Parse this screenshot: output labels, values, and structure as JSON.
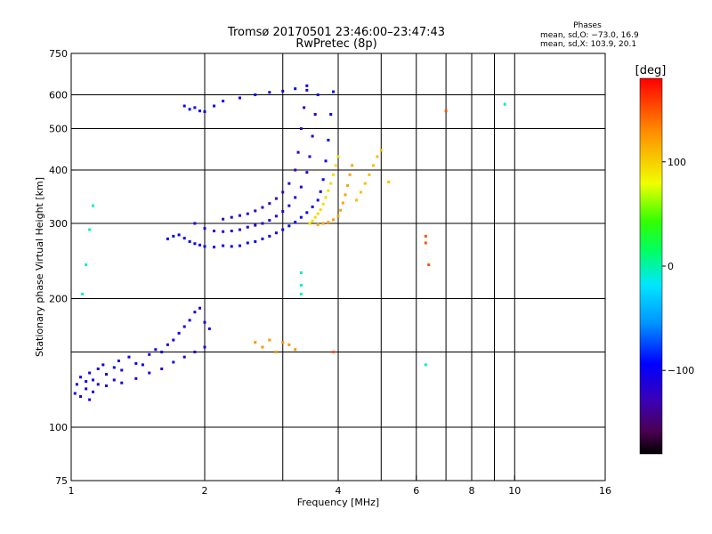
{
  "chart_data": {
    "type": "scatter",
    "title": "Tromsø 20170501 23:46:00–23:47:43",
    "subtitle": "RwPretec (8p)",
    "legend": {
      "title": "Phases",
      "line1": "mean, sd,O: −73.0, 16.9",
      "line2": "mean, sd,X: 103.9, 20.1"
    },
    "xlabel": "Frequency [MHz]",
    "ylabel": "Stationary phase Virtual Height [km]",
    "x_scale": "log",
    "y_scale": "log",
    "xlim": [
      1,
      16
    ],
    "ylim": [
      75,
      750
    ],
    "x_ticks": [
      1,
      2,
      4,
      6,
      8,
      10,
      16
    ],
    "x_tick_labels": [
      "1",
      "2",
      "4",
      "6",
      "8",
      "10",
      "16"
    ],
    "x_grid": [
      2,
      3,
      4,
      5,
      6,
      7,
      8,
      9,
      10
    ],
    "y_ticks": [
      75,
      100,
      200,
      300,
      400,
      500,
      600,
      750
    ],
    "y_tick_labels": [
      "75",
      "100",
      "200",
      "300",
      "400",
      "500",
      "600",
      "750"
    ],
    "y_grid": [
      100,
      150,
      200,
      300,
      400,
      500,
      600
    ],
    "grid": true,
    "colorbar": {
      "label": "[deg]",
      "range": [
        -180,
        180
      ],
      "ticks": [
        100,
        0,
        -100
      ],
      "tick_labels": [
        "100",
        "0",
        "−100"
      ]
    },
    "series": [
      {
        "mean_phase": -105,
        "points": [
          [
            1.03,
            126
          ],
          [
            1.05,
            131
          ],
          [
            1.08,
            128
          ],
          [
            1.1,
            134
          ],
          [
            1.12,
            129
          ],
          [
            1.15,
            137
          ],
          [
            1.18,
            140
          ],
          [
            1.2,
            133
          ],
          [
            1.25,
            138
          ],
          [
            1.28,
            143
          ],
          [
            1.3,
            136
          ],
          [
            1.35,
            146
          ],
          [
            1.4,
            141
          ],
          [
            1.45,
            140
          ],
          [
            1.5,
            148
          ],
          [
            1.55,
            152
          ],
          [
            1.6,
            150
          ],
          [
            1.65,
            156
          ],
          [
            1.7,
            160
          ],
          [
            1.75,
            166
          ],
          [
            1.8,
            172
          ],
          [
            1.85,
            178
          ],
          [
            1.9,
            186
          ],
          [
            1.95,
            190
          ],
          [
            2.0,
            176
          ],
          [
            2.05,
            170
          ]
        ]
      },
      {
        "mean_phase": -108,
        "points": [
          [
            1.02,
            120
          ],
          [
            1.05,
            118
          ],
          [
            1.08,
            123
          ],
          [
            1.1,
            116
          ],
          [
            1.12,
            121
          ],
          [
            1.15,
            126
          ],
          [
            1.2,
            125
          ],
          [
            1.25,
            129
          ],
          [
            1.3,
            127
          ],
          [
            1.4,
            130
          ],
          [
            1.5,
            134
          ],
          [
            1.6,
            137
          ],
          [
            1.7,
            142
          ],
          [
            1.8,
            146
          ],
          [
            1.9,
            150
          ],
          [
            2.0,
            154
          ]
        ]
      },
      {
        "mean_phase": -98,
        "points": [
          [
            1.65,
            276
          ],
          [
            1.7,
            280
          ],
          [
            1.75,
            282
          ],
          [
            1.8,
            277
          ],
          [
            1.85,
            272
          ],
          [
            1.9,
            269
          ],
          [
            1.95,
            267
          ],
          [
            2.0,
            265
          ],
          [
            2.1,
            264
          ],
          [
            2.2,
            266
          ],
          [
            2.3,
            265
          ],
          [
            2.4,
            266
          ],
          [
            2.5,
            270
          ],
          [
            2.6,
            272
          ],
          [
            2.7,
            276
          ],
          [
            2.8,
            280
          ],
          [
            2.9,
            285
          ],
          [
            3.0,
            290
          ],
          [
            3.1,
            296
          ],
          [
            3.2,
            302
          ],
          [
            3.3,
            310
          ],
          [
            3.4,
            318
          ],
          [
            3.5,
            328
          ],
          [
            3.6,
            340
          ],
          [
            3.65,
            356
          ],
          [
            3.7,
            380
          ],
          [
            3.75,
            420
          ],
          [
            3.8,
            470
          ],
          [
            3.85,
            540
          ],
          [
            3.9,
            610
          ]
        ]
      },
      {
        "mean_phase": -112,
        "points": [
          [
            1.9,
            300
          ],
          [
            2.0,
            292
          ],
          [
            2.1,
            288
          ],
          [
            2.2,
            287
          ],
          [
            2.3,
            288
          ],
          [
            2.4,
            290
          ],
          [
            2.5,
            294
          ],
          [
            2.6,
            297
          ],
          [
            2.7,
            300
          ],
          [
            2.8,
            305
          ],
          [
            2.9,
            312
          ],
          [
            3.0,
            320
          ],
          [
            3.1,
            330
          ],
          [
            3.2,
            345
          ],
          [
            3.3,
            365
          ],
          [
            3.4,
            395
          ],
          [
            3.45,
            430
          ],
          [
            3.5,
            480
          ],
          [
            3.55,
            540
          ],
          [
            3.6,
            600
          ]
        ]
      },
      {
        "mean_phase": -118,
        "points": [
          [
            2.2,
            307
          ],
          [
            2.3,
            310
          ],
          [
            2.4,
            313
          ],
          [
            2.5,
            316
          ],
          [
            2.6,
            321
          ],
          [
            2.7,
            327
          ],
          [
            2.8,
            334
          ],
          [
            2.9,
            343
          ],
          [
            3.0,
            355
          ],
          [
            3.1,
            372
          ],
          [
            3.2,
            400
          ],
          [
            3.25,
            440
          ],
          [
            3.3,
            500
          ],
          [
            3.35,
            560
          ],
          [
            3.4,
            615
          ]
        ]
      },
      {
        "mean_phase": -100,
        "points": [
          [
            1.8,
            565
          ],
          [
            1.85,
            555
          ],
          [
            1.9,
            560
          ],
          [
            1.95,
            550
          ],
          [
            2.0,
            548
          ],
          [
            2.1,
            565
          ],
          [
            2.2,
            580
          ],
          [
            2.4,
            590
          ],
          [
            2.6,
            600
          ],
          [
            2.8,
            608
          ],
          [
            3.0,
            612
          ],
          [
            3.2,
            620
          ],
          [
            3.4,
            630
          ]
        ]
      },
      {
        "mean_phase": 95,
        "points": [
          [
            3.45,
            300
          ],
          [
            3.5,
            304
          ],
          [
            3.55,
            310
          ],
          [
            3.6,
            316
          ],
          [
            3.65,
            323
          ],
          [
            3.7,
            333
          ],
          [
            3.75,
            345
          ],
          [
            3.8,
            358
          ],
          [
            3.85,
            372
          ],
          [
            3.9,
            390
          ],
          [
            3.95,
            410
          ],
          [
            4.0,
            430
          ]
        ]
      },
      {
        "mean_phase": 120,
        "points": [
          [
            3.6,
            298
          ],
          [
            3.7,
            300
          ],
          [
            3.8,
            302
          ],
          [
            3.9,
            306
          ],
          [
            4.0,
            312
          ],
          [
            4.05,
            322
          ],
          [
            4.1,
            335
          ],
          [
            4.15,
            350
          ],
          [
            4.2,
            368
          ],
          [
            4.25,
            390
          ],
          [
            4.3,
            410
          ]
        ]
      },
      {
        "mean_phase": 108,
        "points": [
          [
            4.4,
            340
          ],
          [
            4.5,
            355
          ],
          [
            4.6,
            372
          ],
          [
            4.7,
            390
          ],
          [
            4.8,
            410
          ],
          [
            4.9,
            430
          ],
          [
            5.0,
            445
          ],
          [
            5.2,
            375
          ]
        ]
      },
      {
        "mean_phase": 125,
        "points": [
          [
            2.6,
            158
          ],
          [
            2.7,
            154
          ],
          [
            2.8,
            160
          ],
          [
            2.9,
            150
          ],
          [
            3.0,
            158
          ],
          [
            3.1,
            156
          ],
          [
            3.2,
            152
          ]
        ]
      },
      {
        "mean_phase": -5,
        "points": [
          [
            1.06,
            205
          ],
          [
            1.08,
            240
          ],
          [
            1.1,
            290
          ],
          [
            1.12,
            330
          ],
          [
            3.3,
            230
          ],
          [
            3.3,
            215
          ],
          [
            3.3,
            205
          ],
          [
            6.3,
            140
          ],
          [
            9.5,
            570
          ]
        ]
      },
      {
        "mean_phase": 150,
        "points": [
          [
            6.3,
            280
          ],
          [
            6.3,
            270
          ],
          [
            6.4,
            240
          ],
          [
            7.0,
            550
          ],
          [
            3.9,
            150
          ]
        ]
      }
    ]
  }
}
